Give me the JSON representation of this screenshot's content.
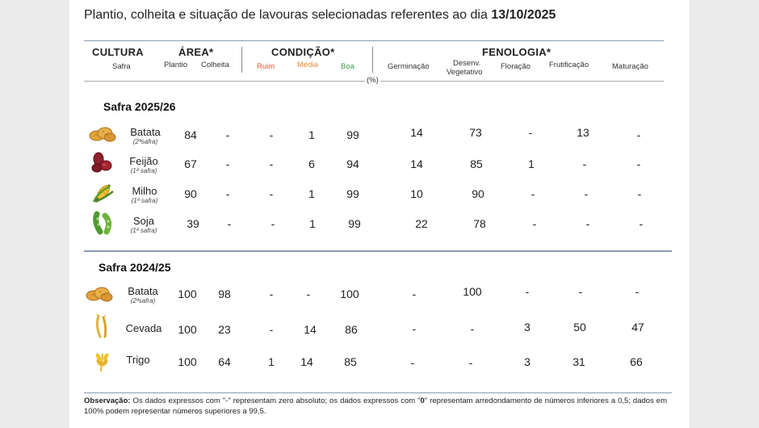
{
  "title": {
    "text": "Plantio, colheita e situação de lavouras selecionadas referentes ao dia",
    "date": "13/10/2025"
  },
  "headers": {
    "cultura": "CULTURA",
    "safra": "Safra",
    "area": "ÁREA*",
    "plantio": "Plantio",
    "colheita": "Colheita",
    "condicao": "CONDIÇÃO*",
    "ruim": "Ruim",
    "media": "Média",
    "boa": "Boa",
    "fenologia": "FENOLOGIA*",
    "germinacao": "Germinação",
    "desenv_1": "Desenv.",
    "desenv_2": "Vegetativo",
    "floracao": "Floração",
    "frutificacao": "Frutificação",
    "maturacao": "Maturação",
    "unit": "(%)"
  },
  "colors": {
    "ruim": "#e2552b",
    "media": "#f0872f",
    "boa": "#3b9a47",
    "rule": "#8a9bb0"
  },
  "sections": [
    {
      "label": "Safra 2025/26",
      "rows": [
        {
          "crop": "Batata",
          "safra": "(2ªsafra)",
          "icon": "potato-icon",
          "plantio": "84",
          "colheita": "-",
          "ruim": "-",
          "media": "1",
          "boa": "99",
          "germinacao": "14",
          "desenv": "73",
          "floracao": "-",
          "frutificacao": "13",
          "maturacao": "-"
        },
        {
          "crop": "Feijão",
          "safra": "(1ª safra)",
          "icon": "bean-icon",
          "plantio": "67",
          "colheita": "-",
          "ruim": "-",
          "media": "6",
          "boa": "94",
          "germinacao": "14",
          "desenv": "85",
          "floracao": "1",
          "frutificacao": "-",
          "maturacao": "-"
        },
        {
          "crop": "Milho",
          "safra": "(1ª safra)",
          "icon": "corn-icon",
          "plantio": "90",
          "colheita": "-",
          "ruim": "-",
          "media": "1",
          "boa": "99",
          "germinacao": "10",
          "desenv": "90",
          "floracao": "-",
          "frutificacao": "-",
          "maturacao": "-"
        },
        {
          "crop": "Soja",
          "safra": "(1ª safra)",
          "icon": "soybean-icon",
          "plantio": "39",
          "colheita": "-",
          "ruim": "-",
          "media": "1",
          "boa": "99",
          "germinacao": "22",
          "desenv": "78",
          "floracao": "-",
          "frutificacao": "-",
          "maturacao": "-"
        }
      ]
    },
    {
      "label": "Safra 2024/25",
      "rows": [
        {
          "crop": "Batata",
          "safra": "(2ªsafra)",
          "icon": "potato-icon",
          "plantio": "100",
          "colheita": "98",
          "ruim": "-",
          "media": "-",
          "boa": "100",
          "germinacao": "-",
          "desenv": "100",
          "floracao": "-",
          "frutificacao": "-",
          "maturacao": "-"
        },
        {
          "crop": "Cevada",
          "safra": "",
          "icon": "barley-icon",
          "plantio": "100",
          "colheita": "23",
          "ruim": "-",
          "media": "14",
          "boa": "86",
          "germinacao": "-",
          "desenv": "-",
          "floracao": "3",
          "frutificacao": "50",
          "maturacao": "47"
        },
        {
          "crop": "Trigo",
          "safra": "",
          "icon": "wheat-icon",
          "plantio": "100",
          "colheita": "64",
          "ruim": "1",
          "media": "14",
          "boa": "85",
          "germinacao": "-",
          "desenv": "-",
          "floracao": "3",
          "frutificacao": "31",
          "maturacao": "66"
        }
      ]
    }
  ],
  "observation": {
    "label": "Observação:",
    "text_1": " Os dados expressos com \"-\" representam zero absoluto; os dados expressos com \"",
    "zero": "0",
    "text_2": "\" representam arredondamento de números inferiores a 0,5; dados em 100% podem representar números superiores a 99,5."
  }
}
